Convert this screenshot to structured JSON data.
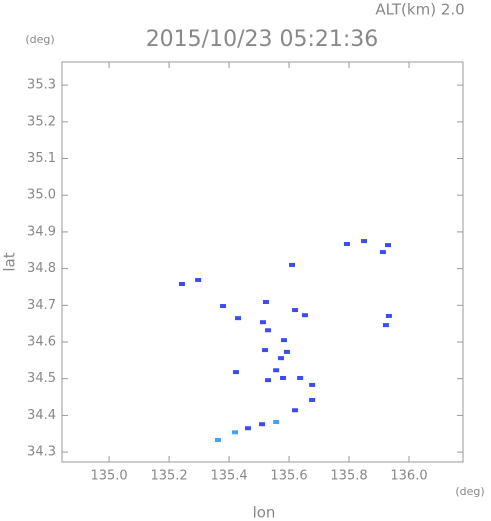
{
  "chart_data": {
    "type": "scatter",
    "title": "2015/10/23 05:21:36",
    "subtitle": "ALT(km) 2.0",
    "y_unit": "(deg)",
    "x_unit": "(deg)",
    "x_label": "lon",
    "y_label": "lat",
    "xlim": [
      134.843,
      136.18
    ],
    "ylim": [
      34.273,
      35.363
    ],
    "xticks": [
      {
        "value": 135,
        "label": "135.0"
      },
      135.2,
      135.4,
      135.6,
      135.8,
      {
        "value": 136,
        "label": "136.0"
      }
    ],
    "yticks": [
      34.3,
      34.4,
      {
        "value": 34.5,
        "label": "34.5"
      },
      34.6,
      34.7,
      34.8,
      34.9,
      {
        "value": 35,
        "label": "35.0"
      },
      35.1,
      35.2,
      35.3
    ],
    "grid": false,
    "series": [
      {
        "color": "#3b4cf2",
        "x": [
          135.243,
          135.297,
          135.38,
          135.43,
          135.513,
          135.53,
          135.583,
          135.653,
          135.62,
          135.61,
          135.793,
          135.85,
          135.93,
          135.913,
          135.933,
          135.923,
          135.573,
          135.593,
          135.557,
          135.58,
          135.53,
          135.637,
          135.677,
          135.677,
          135.62,
          135.51,
          135.463,
          135.423,
          135.523,
          135.52
        ],
        "values": [
          34.758,
          34.769,
          34.698,
          34.665,
          34.654,
          34.632,
          34.605,
          34.673,
          34.687,
          34.81,
          34.867,
          34.875,
          34.864,
          34.845,
          34.671,
          34.646,
          34.556,
          34.573,
          34.523,
          34.502,
          34.496,
          34.502,
          34.483,
          34.442,
          34.414,
          34.376,
          34.365,
          34.518,
          34.709,
          34.578
        ]
      },
      {
        "color": "#3fa4f2",
        "x": [
          135.557,
          135.42,
          135.363
        ],
        "values": [
          34.382,
          34.354,
          34.333
        ]
      }
    ]
  }
}
